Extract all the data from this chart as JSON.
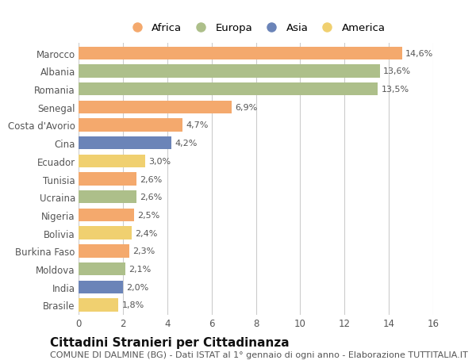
{
  "countries": [
    "Marocco",
    "Albania",
    "Romania",
    "Senegal",
    "Costa d'Avorio",
    "Cina",
    "Ecuador",
    "Tunisia",
    "Ucraina",
    "Nigeria",
    "Bolivia",
    "Burkina Faso",
    "Moldova",
    "India",
    "Brasile"
  ],
  "values": [
    14.6,
    13.6,
    13.5,
    6.9,
    4.7,
    4.2,
    3.0,
    2.6,
    2.6,
    2.5,
    2.4,
    2.3,
    2.1,
    2.0,
    1.8
  ],
  "labels": [
    "14,6%",
    "13,6%",
    "13,5%",
    "6,9%",
    "4,7%",
    "4,2%",
    "3,0%",
    "2,6%",
    "2,6%",
    "2,5%",
    "2,4%",
    "2,3%",
    "2,1%",
    "2,0%",
    "1,8%"
  ],
  "continents": [
    "Africa",
    "Europa",
    "Europa",
    "Africa",
    "Africa",
    "Asia",
    "America",
    "Africa",
    "Europa",
    "Africa",
    "America",
    "Africa",
    "Europa",
    "Asia",
    "America"
  ],
  "continent_colors": {
    "Africa": "#F4A96D",
    "Europa": "#ADBF8A",
    "Asia": "#6B84B8",
    "America": "#F0D070"
  },
  "legend_order": [
    "Africa",
    "Europa",
    "Asia",
    "America"
  ],
  "title": "Cittadini Stranieri per Cittadinanza",
  "subtitle": "COMUNE DI DALMINE (BG) - Dati ISTAT al 1° gennaio di ogni anno - Elaborazione TUTTITALIA.IT",
  "xlim": [
    0,
    16
  ],
  "xticks": [
    0,
    2,
    4,
    6,
    8,
    10,
    12,
    14,
    16
  ],
  "bg_color": "#FFFFFF",
  "plot_bg_color": "#FFFFFF",
  "grid_color": "#CCCCCC",
  "bar_height": 0.72,
  "title_fontsize": 11,
  "subtitle_fontsize": 8,
  "label_fontsize": 8,
  "tick_fontsize": 8.5,
  "legend_fontsize": 9.5
}
